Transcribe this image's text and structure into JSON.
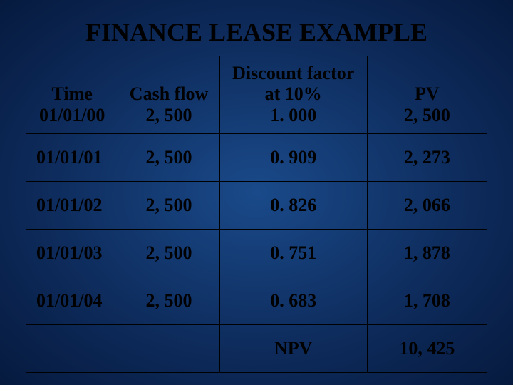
{
  "title": "FINANCE LEASE EXAMPLE",
  "title_fontsize": 36,
  "title_color": "#000000",
  "background": {
    "center_color": "#1a4a8a",
    "mid_color": "#0d2a5a",
    "edge_color": "#061a3e"
  },
  "table": {
    "border_color": "#000000",
    "cell_fontsize": 26,
    "cell_font_weight": "bold",
    "columns": [
      {
        "key": "time",
        "label": "Time",
        "width_pct": 20,
        "align": "center"
      },
      {
        "key": "cash_flow",
        "label": "Cash flow",
        "width_pct": 22,
        "align": "center"
      },
      {
        "key": "discount_factor",
        "label_line1": "Discount factor",
        "label_line2": "at 10%",
        "label_line3": "1. 000",
        "width_pct": 32,
        "align": "center"
      },
      {
        "key": "pv",
        "label_line1": "PV",
        "label_line2": "2, 500",
        "width_pct": 26,
        "align": "center"
      }
    ],
    "header_row_special": {
      "time_value": "01/01/00",
      "cash_flow_value": "2, 500"
    },
    "rows": [
      {
        "time": "01/01/01",
        "cash_flow": "2, 500",
        "discount_factor": "0. 909",
        "pv": "2, 273"
      },
      {
        "time": "01/01/02",
        "cash_flow": "2, 500",
        "discount_factor": "0. 826",
        "pv": "2, 066"
      },
      {
        "time": "01/01/03",
        "cash_flow": "2, 500",
        "discount_factor": "0. 751",
        "pv": "1, 878"
      },
      {
        "time": "01/01/04",
        "cash_flow": "2, 500",
        "discount_factor": "0. 683",
        "pv": "1, 708"
      }
    ],
    "footer": {
      "label": "NPV",
      "value": "10, 425"
    }
  }
}
